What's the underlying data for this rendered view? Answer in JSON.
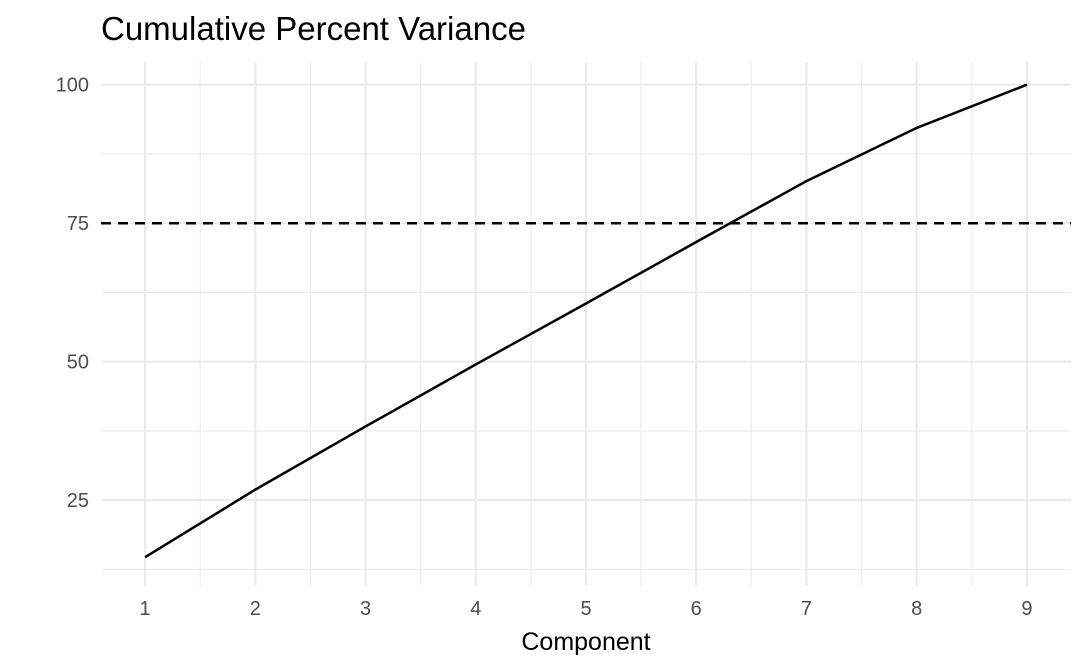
{
  "chart_data": {
    "type": "line",
    "title": "Cumulative Percent Variance",
    "xlabel": "Component",
    "ylabel": "",
    "x": [
      1,
      2,
      3,
      4,
      5,
      6,
      7,
      8,
      9
    ],
    "series": [
      {
        "values": [
          14.7,
          26.9,
          38.3,
          49.5,
          60.5,
          71.6,
          82.6,
          92.2,
          100.0
        ]
      }
    ],
    "reference_lines": [
      {
        "axis": "y",
        "value": 75,
        "style": "dashed"
      }
    ],
    "xlim": [
      0.6,
      9.4
    ],
    "ylim": [
      9.5,
      104.1
    ],
    "x_ticks": [
      1,
      2,
      3,
      4,
      5,
      6,
      7,
      8,
      9
    ],
    "y_ticks": [
      25,
      50,
      75,
      100
    ],
    "x_tick_labels": [
      "1",
      "2",
      "3",
      "4",
      "5",
      "6",
      "7",
      "8",
      "9"
    ],
    "y_tick_labels": [
      "25",
      "50",
      "75",
      "100"
    ],
    "grid": true,
    "legend": "none"
  }
}
